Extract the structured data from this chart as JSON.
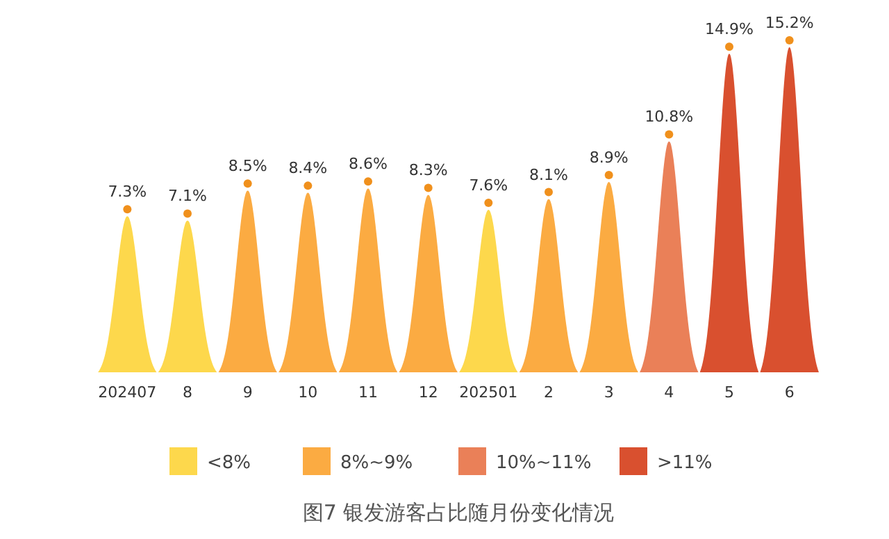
{
  "chart_data": {
    "type": "bar",
    "title": "图7 银发游客占比随月份变化情况",
    "categories": [
      "202407",
      "8",
      "9",
      "10",
      "11",
      "12",
      "202501",
      "2",
      "3",
      "4",
      "5",
      "6"
    ],
    "series": [
      {
        "name": "<8%",
        "color": "#fdd84c",
        "values": [
          7.3,
          7.1,
          null,
          null,
          null,
          null,
          7.6,
          null,
          null,
          null,
          null,
          null
        ],
        "value_labels": [
          "7.3%",
          "7.1%",
          null,
          null,
          null,
          null,
          "7.6%",
          null,
          null,
          null,
          null,
          null
        ]
      },
      {
        "name": "8%~9%",
        "color": "#fbab42",
        "values": [
          null,
          null,
          8.5,
          8.4,
          8.6,
          8.3,
          null,
          8.1,
          8.9,
          null,
          null,
          null
        ],
        "value_labels": [
          null,
          null,
          "8.5%",
          "8.4%",
          "8.6%",
          "8.3%",
          null,
          "8.1%",
          "8.9%",
          null,
          null,
          null
        ]
      },
      {
        "name": "10%~11%",
        "color": "#ea8058",
        "values": [
          null,
          null,
          null,
          null,
          null,
          null,
          null,
          null,
          null,
          10.8,
          null,
          null
        ],
        "value_labels": [
          null,
          null,
          null,
          null,
          null,
          null,
          null,
          null,
          null,
          "10.8%",
          null,
          null
        ]
      },
      {
        "name": ">11%",
        "color": "#d9502f",
        "values": [
          null,
          null,
          null,
          null,
          null,
          null,
          null,
          null,
          null,
          null,
          14.9,
          15.2
        ],
        "value_labels": [
          null,
          null,
          null,
          null,
          null,
          null,
          null,
          null,
          null,
          null,
          "14.9%",
          "15.2%"
        ]
      }
    ],
    "tick_labels": "x",
    "legend": "bottom"
  }
}
